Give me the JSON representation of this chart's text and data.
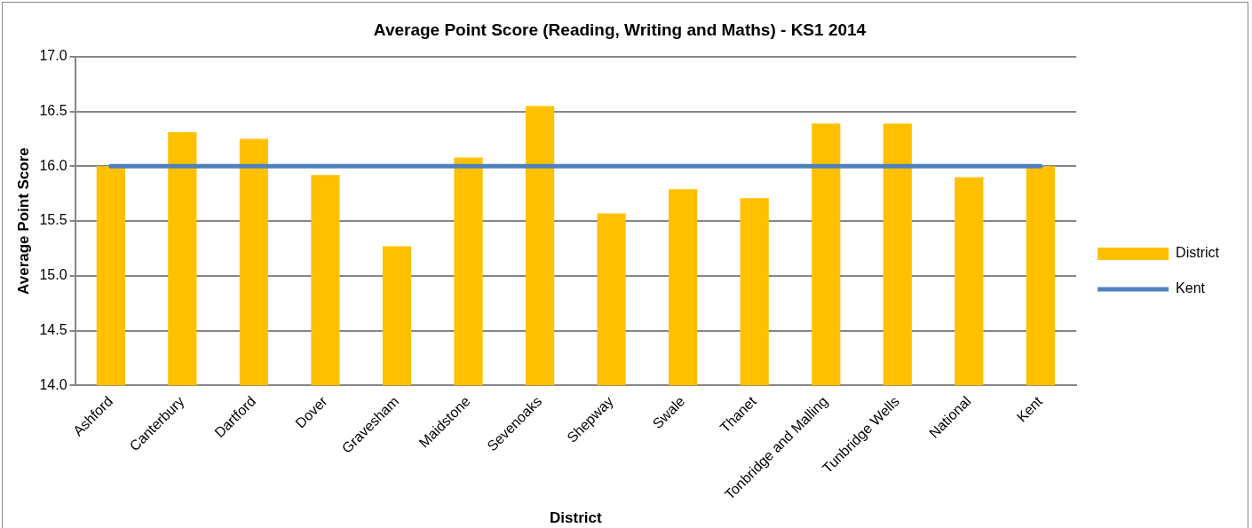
{
  "chart_data": {
    "type": "bar",
    "title": "Average Point Score (Reading, Writing and Maths) - KS1 2014",
    "xlabel": "District",
    "ylabel": "Average Point Score",
    "categories": [
      "Ashford",
      "Canterbury",
      "Dartford",
      "Dover",
      "Gravesham",
      "Maidstone",
      "Sevenoaks",
      "Shepway",
      "Swale",
      "Thanet",
      "Tonbridge and Malling",
      "Tunbridge Wells",
      "National",
      "Kent"
    ],
    "series": [
      {
        "name": "District",
        "color": "#ffc000",
        "values": [
          16.0,
          16.31,
          16.25,
          15.92,
          15.27,
          16.08,
          16.55,
          15.57,
          15.79,
          15.71,
          16.39,
          16.39,
          15.9,
          16.0
        ]
      },
      {
        "name": "Kent",
        "type": "line",
        "color": "#4f81bd",
        "values": [
          16.0,
          16.0,
          16.0,
          16.0,
          16.0,
          16.0,
          16.0,
          16.0,
          16.0,
          16.0,
          16.0,
          16.0,
          16.0,
          16.0
        ]
      }
    ],
    "ylim": [
      14,
      17
    ],
    "yticks": [
      {
        "value": 14,
        "label": "14.0"
      },
      {
        "value": 14.5,
        "label": "14.5"
      },
      {
        "value": 15,
        "label": "15.0"
      },
      {
        "value": 15.5,
        "label": "15.5"
      },
      {
        "value": 16,
        "label": "16.0"
      },
      {
        "value": 16.5,
        "label": "16.5"
      },
      {
        "value": 17,
        "label": "17.0"
      }
    ],
    "grid": "y",
    "legend": "right",
    "marker": "none"
  }
}
